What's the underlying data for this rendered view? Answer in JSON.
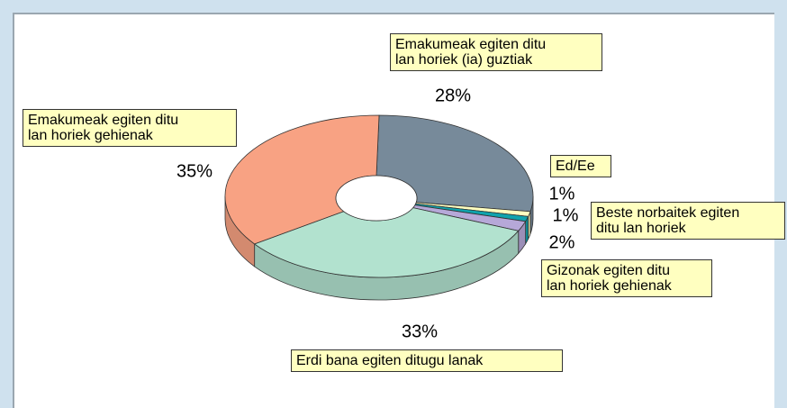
{
  "chart_data": {
    "type": "pie",
    "categories": [
      "Emakumeak egiten ditu\nlan horiek (ia) guztiak",
      "Ed/Ee",
      "Beste norbaitek egiten\nditu lan horiek",
      "Gizonak egiten ditu\nlan horiek gehienak",
      "Erdi bana egiten ditugu lanak",
      "Emakumeak egiten ditu\nlan horiek gehienak"
    ],
    "values": [
      28,
      1,
      1,
      2,
      33,
      35
    ],
    "value_labels": [
      "28%",
      "1%",
      "1%",
      "2%",
      "33%",
      "35%"
    ],
    "colors": [
      "#778a9a",
      "#ffffc0",
      "#10a3ad",
      "#b6a8d8",
      "#b2e2cf",
      "#f8a283"
    ],
    "donut": true,
    "three_d": true
  }
}
